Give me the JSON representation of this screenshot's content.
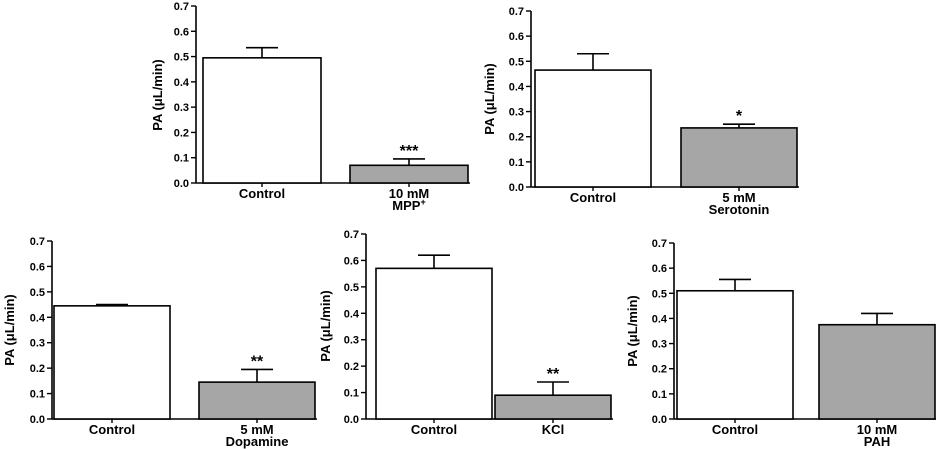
{
  "colors": {
    "control": "#ffffff",
    "treatment": "#a6a6a6",
    "stroke": "#000000"
  },
  "chart_data": [
    {
      "type": "bar",
      "ylabel": "PA (μL/min)",
      "ylim": [
        0,
        0.7
      ],
      "yticks": [
        "0.0",
        "0.1",
        "0.2",
        "0.3",
        "0.4",
        "0.5",
        "0.6",
        "0.7"
      ],
      "categories": [
        {
          "line1": "Control",
          "line2": "",
          "sup": ""
        },
        {
          "line1": "10 mM",
          "line2": "MPP",
          "sup": "+"
        }
      ],
      "values": [
        0.495,
        0.07
      ],
      "errors": [
        0.04,
        0.025
      ],
      "significance": [
        "",
        "***"
      ]
    },
    {
      "type": "bar",
      "ylabel": "PA (μL/min)",
      "ylim": [
        0,
        0.7
      ],
      "yticks": [
        "0.0",
        "0.1",
        "0.2",
        "0.3",
        "0.4",
        "0.5",
        "0.6",
        "0.7"
      ],
      "categories": [
        {
          "line1": "Control",
          "line2": "",
          "sup": ""
        },
        {
          "line1": "5 mM",
          "line2": "Serotonin",
          "sup": ""
        }
      ],
      "values": [
        0.465,
        0.235
      ],
      "errors": [
        0.065,
        0.015
      ],
      "significance": [
        "",
        "*"
      ]
    },
    {
      "type": "bar",
      "ylabel": "PA (μL/min)",
      "ylim": [
        0,
        0.7
      ],
      "yticks": [
        "0.0",
        "0.1",
        "0.2",
        "0.3",
        "0.4",
        "0.5",
        "0.6",
        "0.7"
      ],
      "categories": [
        {
          "line1": "Control",
          "line2": "",
          "sup": ""
        },
        {
          "line1": "5 mM",
          "line2": "Dopamine",
          "sup": ""
        }
      ],
      "values": [
        0.445,
        0.145
      ],
      "errors": [
        0.005,
        0.05
      ],
      "significance": [
        "",
        "**"
      ]
    },
    {
      "type": "bar",
      "ylabel": "PA (μL/min)",
      "ylim": [
        0,
        0.7
      ],
      "yticks": [
        "0.0",
        "0.1",
        "0.2",
        "0.3",
        "0.4",
        "0.5",
        "0.6",
        "0.7"
      ],
      "categories": [
        {
          "line1": "Control",
          "line2": "",
          "sup": ""
        },
        {
          "line1": "KCl",
          "line2": "",
          "sup": ""
        }
      ],
      "values": [
        0.57,
        0.09
      ],
      "errors": [
        0.05,
        0.05
      ],
      "significance": [
        "",
        "**"
      ]
    },
    {
      "type": "bar",
      "ylabel": "PA (μL/min)",
      "ylim": [
        0,
        0.7
      ],
      "yticks": [
        "0.0",
        "0.1",
        "0.2",
        "0.3",
        "0.4",
        "0.5",
        "0.6",
        "0.7"
      ],
      "categories": [
        {
          "line1": "Control",
          "line2": "",
          "sup": ""
        },
        {
          "line1": "10 mM",
          "line2": "PAH",
          "sup": ""
        }
      ],
      "values": [
        0.51,
        0.375
      ],
      "errors": [
        0.045,
        0.045
      ],
      "significance": [
        "",
        ""
      ]
    }
  ]
}
